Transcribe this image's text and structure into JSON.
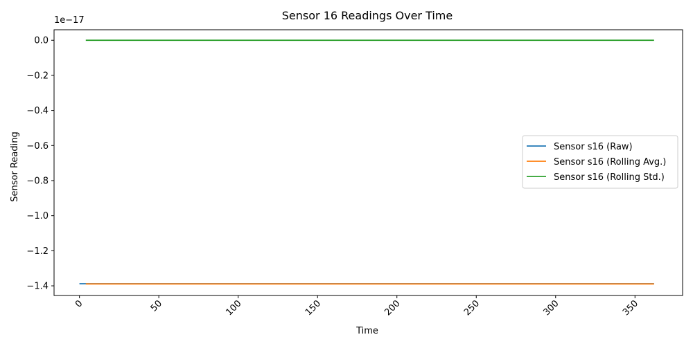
{
  "chart_data": {
    "type": "line",
    "title": "Sensor 16 Readings Over Time",
    "xlabel": "Time",
    "ylabel": "Sensor Reading",
    "y_offset_text": "1e−17",
    "xlim": [
      -16,
      380
    ],
    "ylim": [
      -1.455,
      0.06
    ],
    "x_ticks": [
      0,
      50,
      100,
      150,
      200,
      250,
      300,
      350
    ],
    "x_tick_labels": [
      "0",
      "50",
      "100",
      "150",
      "200",
      "250",
      "300",
      "350"
    ],
    "y_ticks": [
      0.0,
      -0.2,
      -0.4,
      -0.6,
      -0.8,
      -1.0,
      -1.2,
      -1.4
    ],
    "y_tick_labels": [
      "0.0",
      "−0.2",
      "−0.4",
      "−0.6",
      "−0.8",
      "−1.0",
      "−1.2",
      "−1.4"
    ],
    "grid": false,
    "legend_position": "center-right",
    "series": [
      {
        "name": "Sensor s16 (Raw)",
        "color": "#1f77b4",
        "x": [
          0,
          362
        ],
        "y": [
          -1.388,
          -1.388
        ]
      },
      {
        "name": "Sensor s16 (Rolling Avg.)",
        "color": "#ff7f0e",
        "x": [
          4,
          362
        ],
        "y": [
          -1.389,
          -1.389
        ]
      },
      {
        "name": "Sensor s16 (Rolling Std.)",
        "color": "#2ca02c",
        "x": [
          4,
          362
        ],
        "y": [
          0.0,
          0.0
        ]
      }
    ]
  }
}
